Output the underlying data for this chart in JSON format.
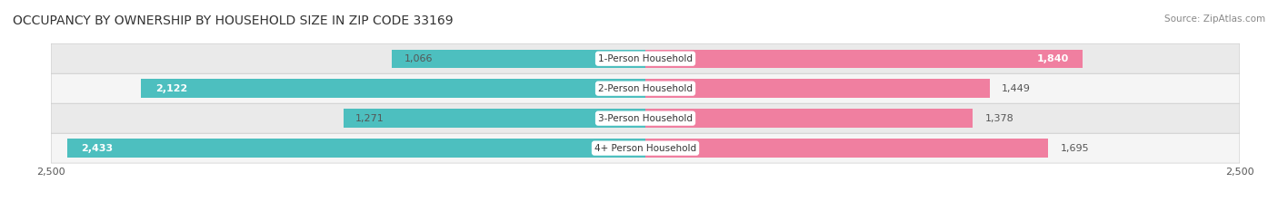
{
  "title": "OCCUPANCY BY OWNERSHIP BY HOUSEHOLD SIZE IN ZIP CODE 33169",
  "source": "Source: ZipAtlas.com",
  "categories": [
    "1-Person Household",
    "2-Person Household",
    "3-Person Household",
    "4+ Person Household"
  ],
  "owner_values": [
    1066,
    2122,
    1271,
    2433
  ],
  "renter_values": [
    1840,
    1449,
    1378,
    1695
  ],
  "owner_color": "#4dbfbf",
  "renter_color": "#f07fa0",
  "axis_max": 2500,
  "bar_height": 0.62,
  "title_fontsize": 10,
  "label_fontsize": 8,
  "tick_fontsize": 8,
  "source_fontsize": 7.5,
  "legend_fontsize": 8,
  "category_label_fontsize": 7.5,
  "background_color": "#ffffff",
  "row_bg_light": "#f5f5f5",
  "row_bg_dark": "#eaeaea",
  "value_text_white": "#ffffff",
  "value_text_dark": "#555555"
}
